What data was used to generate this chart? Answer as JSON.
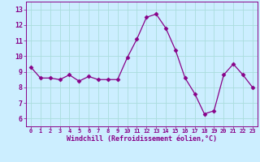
{
  "x": [
    0,
    1,
    2,
    3,
    4,
    5,
    6,
    7,
    8,
    9,
    10,
    11,
    12,
    13,
    14,
    15,
    16,
    17,
    18,
    19,
    20,
    21,
    22,
    23
  ],
  "y": [
    9.3,
    8.6,
    8.6,
    8.5,
    8.8,
    8.4,
    8.7,
    8.5,
    8.5,
    8.5,
    9.9,
    11.1,
    12.5,
    12.7,
    11.8,
    10.4,
    8.6,
    7.6,
    6.3,
    6.5,
    8.8,
    9.5,
    8.8,
    8.0
  ],
  "xlim": [
    -0.5,
    23.5
  ],
  "ylim": [
    5.5,
    13.5
  ],
  "yticks": [
    6,
    7,
    8,
    9,
    10,
    11,
    12,
    13
  ],
  "xticks": [
    0,
    1,
    2,
    3,
    4,
    5,
    6,
    7,
    8,
    9,
    10,
    11,
    12,
    13,
    14,
    15,
    16,
    17,
    18,
    19,
    20,
    21,
    22,
    23
  ],
  "xlabel": "Windchill (Refroidissement éolien,°C)",
  "line_color": "#880088",
  "marker": "D",
  "marker_size": 2.5,
  "bg_color": "#cceeff",
  "grid_color": "#aadddd",
  "xlabel_color": "#880088",
  "tick_color": "#880088"
}
